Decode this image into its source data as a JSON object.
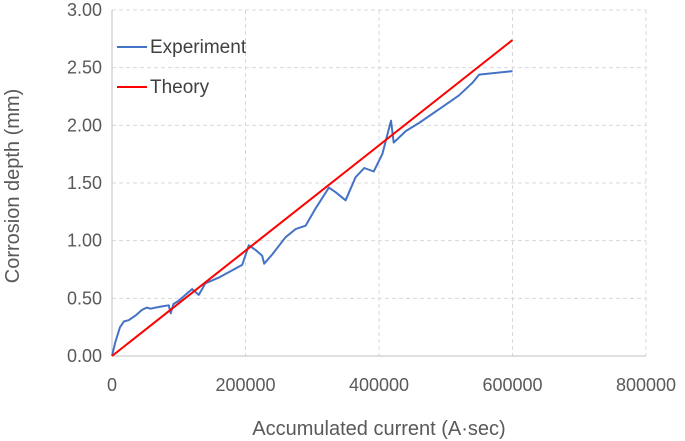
{
  "chart_data": {
    "type": "line",
    "title": "",
    "xlabel": "Accumulated current (A·sec)",
    "ylabel": "Corrosion depth (mm)",
    "xlim": [
      0,
      800000
    ],
    "ylim": [
      0,
      3.0
    ],
    "x_ticks": [
      0,
      200000,
      400000,
      600000,
      800000
    ],
    "x_tick_labels": [
      "0",
      "200000",
      "400000",
      "600000",
      "800000"
    ],
    "y_ticks": [
      0,
      0.5,
      1.0,
      1.5,
      2.0,
      2.5,
      3.0
    ],
    "y_tick_labels": [
      "0.00",
      "0.50",
      "1.00",
      "1.50",
      "2.00",
      "2.50",
      "3.00"
    ],
    "grid": true,
    "legend_position": "top-left",
    "series": [
      {
        "name": "Experiment",
        "color": "#4472c4",
        "x": [
          0,
          5000,
          12000,
          18000,
          25000,
          35000,
          45000,
          52000,
          58000,
          65000,
          75000,
          85000,
          88000,
          92000,
          100000,
          110000,
          120000,
          130000,
          140000,
          160000,
          195000,
          205000,
          215000,
          225000,
          228000,
          240000,
          260000,
          275000,
          290000,
          305000,
          325000,
          335000,
          350000,
          365000,
          378000,
          392000,
          405000,
          418000,
          422000,
          440000,
          460000,
          500000,
          520000,
          540000,
          550000,
          600000
        ],
        "values": [
          0.0,
          0.12,
          0.25,
          0.3,
          0.31,
          0.35,
          0.4,
          0.42,
          0.41,
          0.42,
          0.43,
          0.44,
          0.37,
          0.45,
          0.48,
          0.53,
          0.58,
          0.53,
          0.63,
          0.68,
          0.79,
          0.96,
          0.92,
          0.87,
          0.8,
          0.88,
          1.03,
          1.1,
          1.13,
          1.28,
          1.46,
          1.42,
          1.35,
          1.55,
          1.63,
          1.6,
          1.75,
          2.04,
          1.85,
          1.95,
          2.02,
          2.18,
          2.26,
          2.37,
          2.44,
          2.47
        ]
      },
      {
        "name": "Theory",
        "color": "#ff0000",
        "x": [
          0,
          600000
        ],
        "values": [
          0.0,
          2.74
        ]
      }
    ]
  }
}
